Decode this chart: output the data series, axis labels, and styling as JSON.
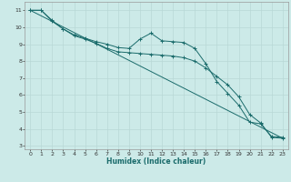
{
  "xlabel": "Humidex (Indice chaleur)",
  "xlim": [
    -0.5,
    23.5
  ],
  "ylim": [
    2.8,
    11.5
  ],
  "yticks": [
    3,
    4,
    5,
    6,
    7,
    8,
    9,
    10,
    11
  ],
  "xticks": [
    0,
    1,
    2,
    3,
    4,
    5,
    6,
    7,
    8,
    9,
    10,
    11,
    12,
    13,
    14,
    15,
    16,
    17,
    18,
    19,
    20,
    21,
    22,
    23
  ],
  "bg_color": "#cceae8",
  "grid_color": "#b8d8d6",
  "line_color": "#1a6b6b",
  "series1_x": [
    0,
    1,
    2,
    3,
    4,
    5,
    6,
    7,
    8,
    9,
    10,
    11,
    12,
    13,
    14,
    15,
    16,
    17,
    18,
    19,
    20,
    21,
    22,
    23
  ],
  "series1_y": [
    11.0,
    11.0,
    10.4,
    9.9,
    9.55,
    9.35,
    9.15,
    9.0,
    8.8,
    8.75,
    9.3,
    9.65,
    9.2,
    9.15,
    9.1,
    8.75,
    7.85,
    6.8,
    6.1,
    5.4,
    4.4,
    4.3,
    3.55,
    3.5
  ],
  "series2_x": [
    0,
    1,
    2,
    3,
    4,
    5,
    6,
    7,
    8,
    9,
    10,
    11,
    12,
    13,
    14,
    15,
    16,
    17,
    18,
    19,
    20,
    21,
    22,
    23
  ],
  "series2_y": [
    11.0,
    11.0,
    10.35,
    9.9,
    9.5,
    9.3,
    9.05,
    8.75,
    8.55,
    8.5,
    8.45,
    8.4,
    8.35,
    8.3,
    8.2,
    8.0,
    7.6,
    7.1,
    6.6,
    5.9,
    4.85,
    4.35,
    3.5,
    3.45
  ],
  "series3_x": [
    0,
    23
  ],
  "series3_y": [
    11.0,
    3.45
  ]
}
